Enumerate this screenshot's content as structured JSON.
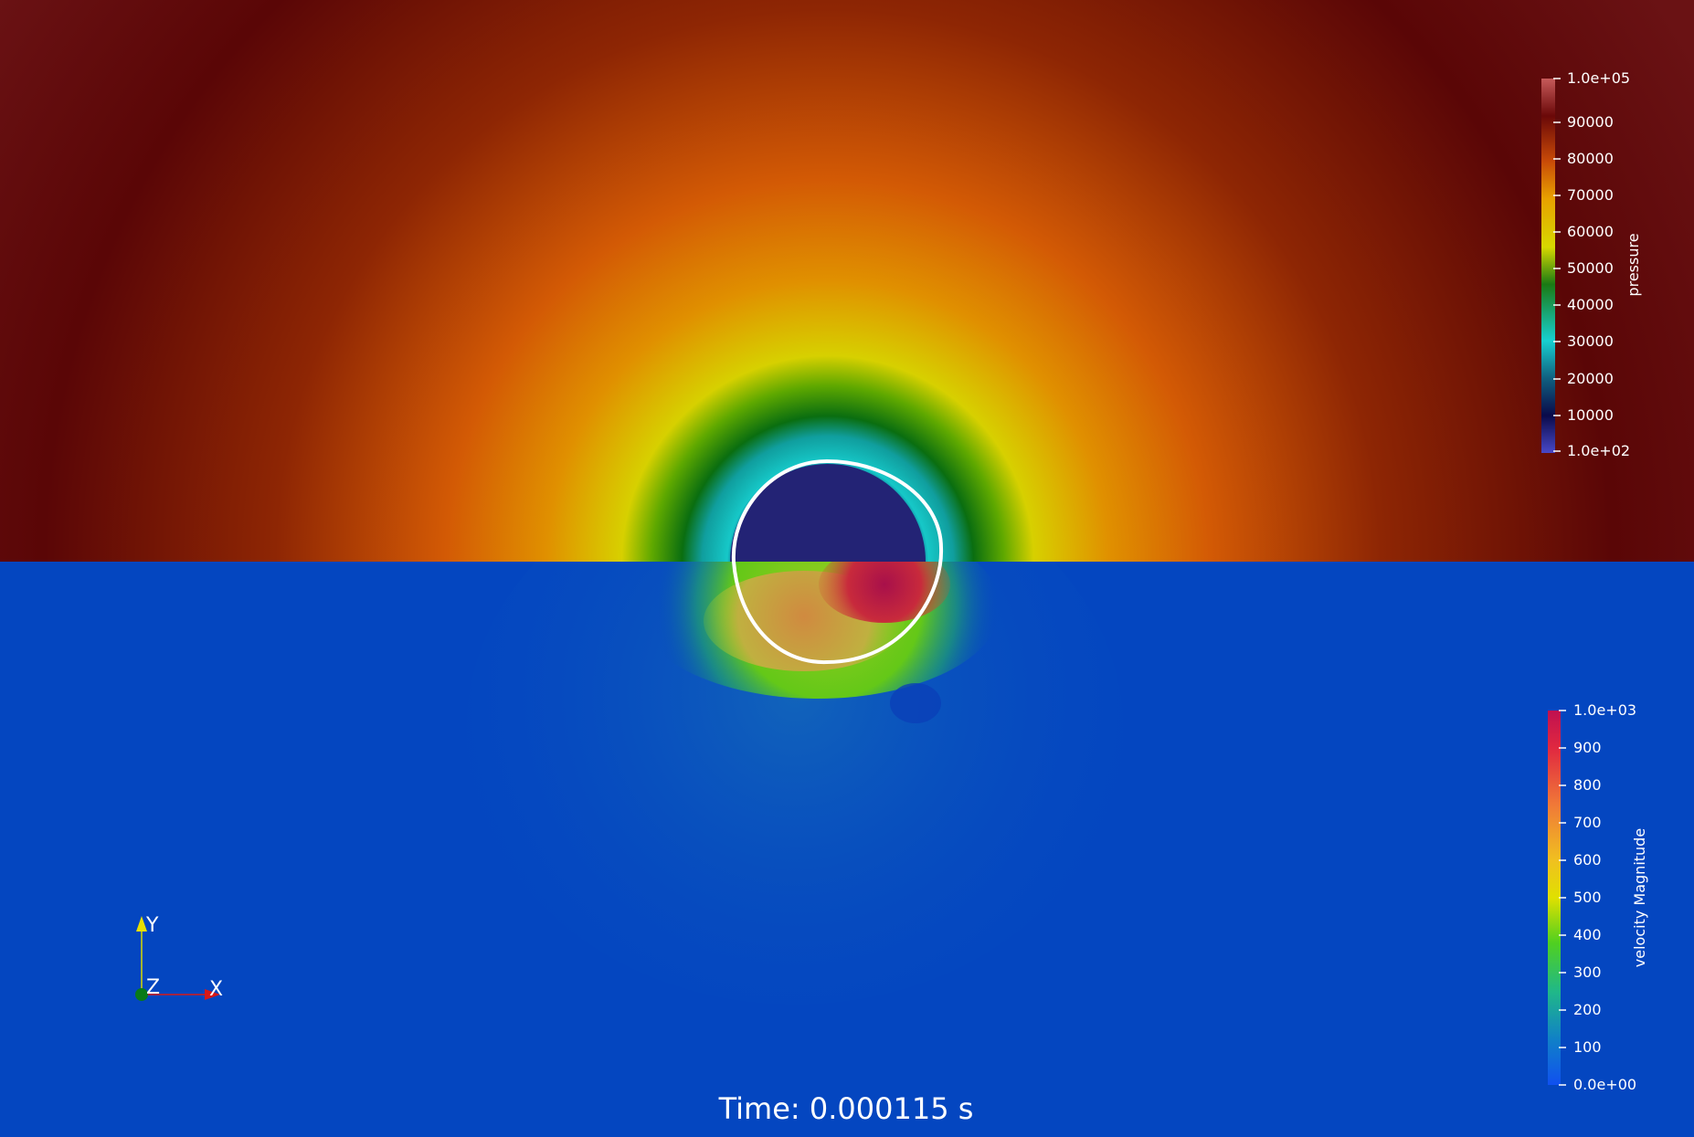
{
  "colors": {
    "pressure_dark": "#5a0a08",
    "pressure_orange": "#d35a05",
    "pressure_yellow": "#d7d000",
    "pressure_green": "#0a6e10",
    "pressure_cyan": "#16c8c8",
    "pressure_navy": "#0a0a55",
    "bubble_fill": "#232375",
    "velocity_bg": "#0446c0",
    "velocity_hot": "#a8104a",
    "interface_line": "#ffffff"
  },
  "pressure_legend": {
    "title": "pressure",
    "ticks": [
      "1.0e+05",
      "90000",
      "80000",
      "70000",
      "60000",
      "50000",
      "40000",
      "30000",
      "20000",
      "10000",
      "1.0e+02"
    ]
  },
  "velocity_legend": {
    "title": "velocity Magnitude",
    "ticks": [
      "1.0e+03",
      "900",
      "800",
      "700",
      "600",
      "500",
      "400",
      "300",
      "200",
      "100",
      "0.0e+00"
    ]
  },
  "axes_triad": {
    "y_label": "Y",
    "z_label": "Z",
    "x_label": "X"
  },
  "time_annotation": "Time: 0.000115 s"
}
